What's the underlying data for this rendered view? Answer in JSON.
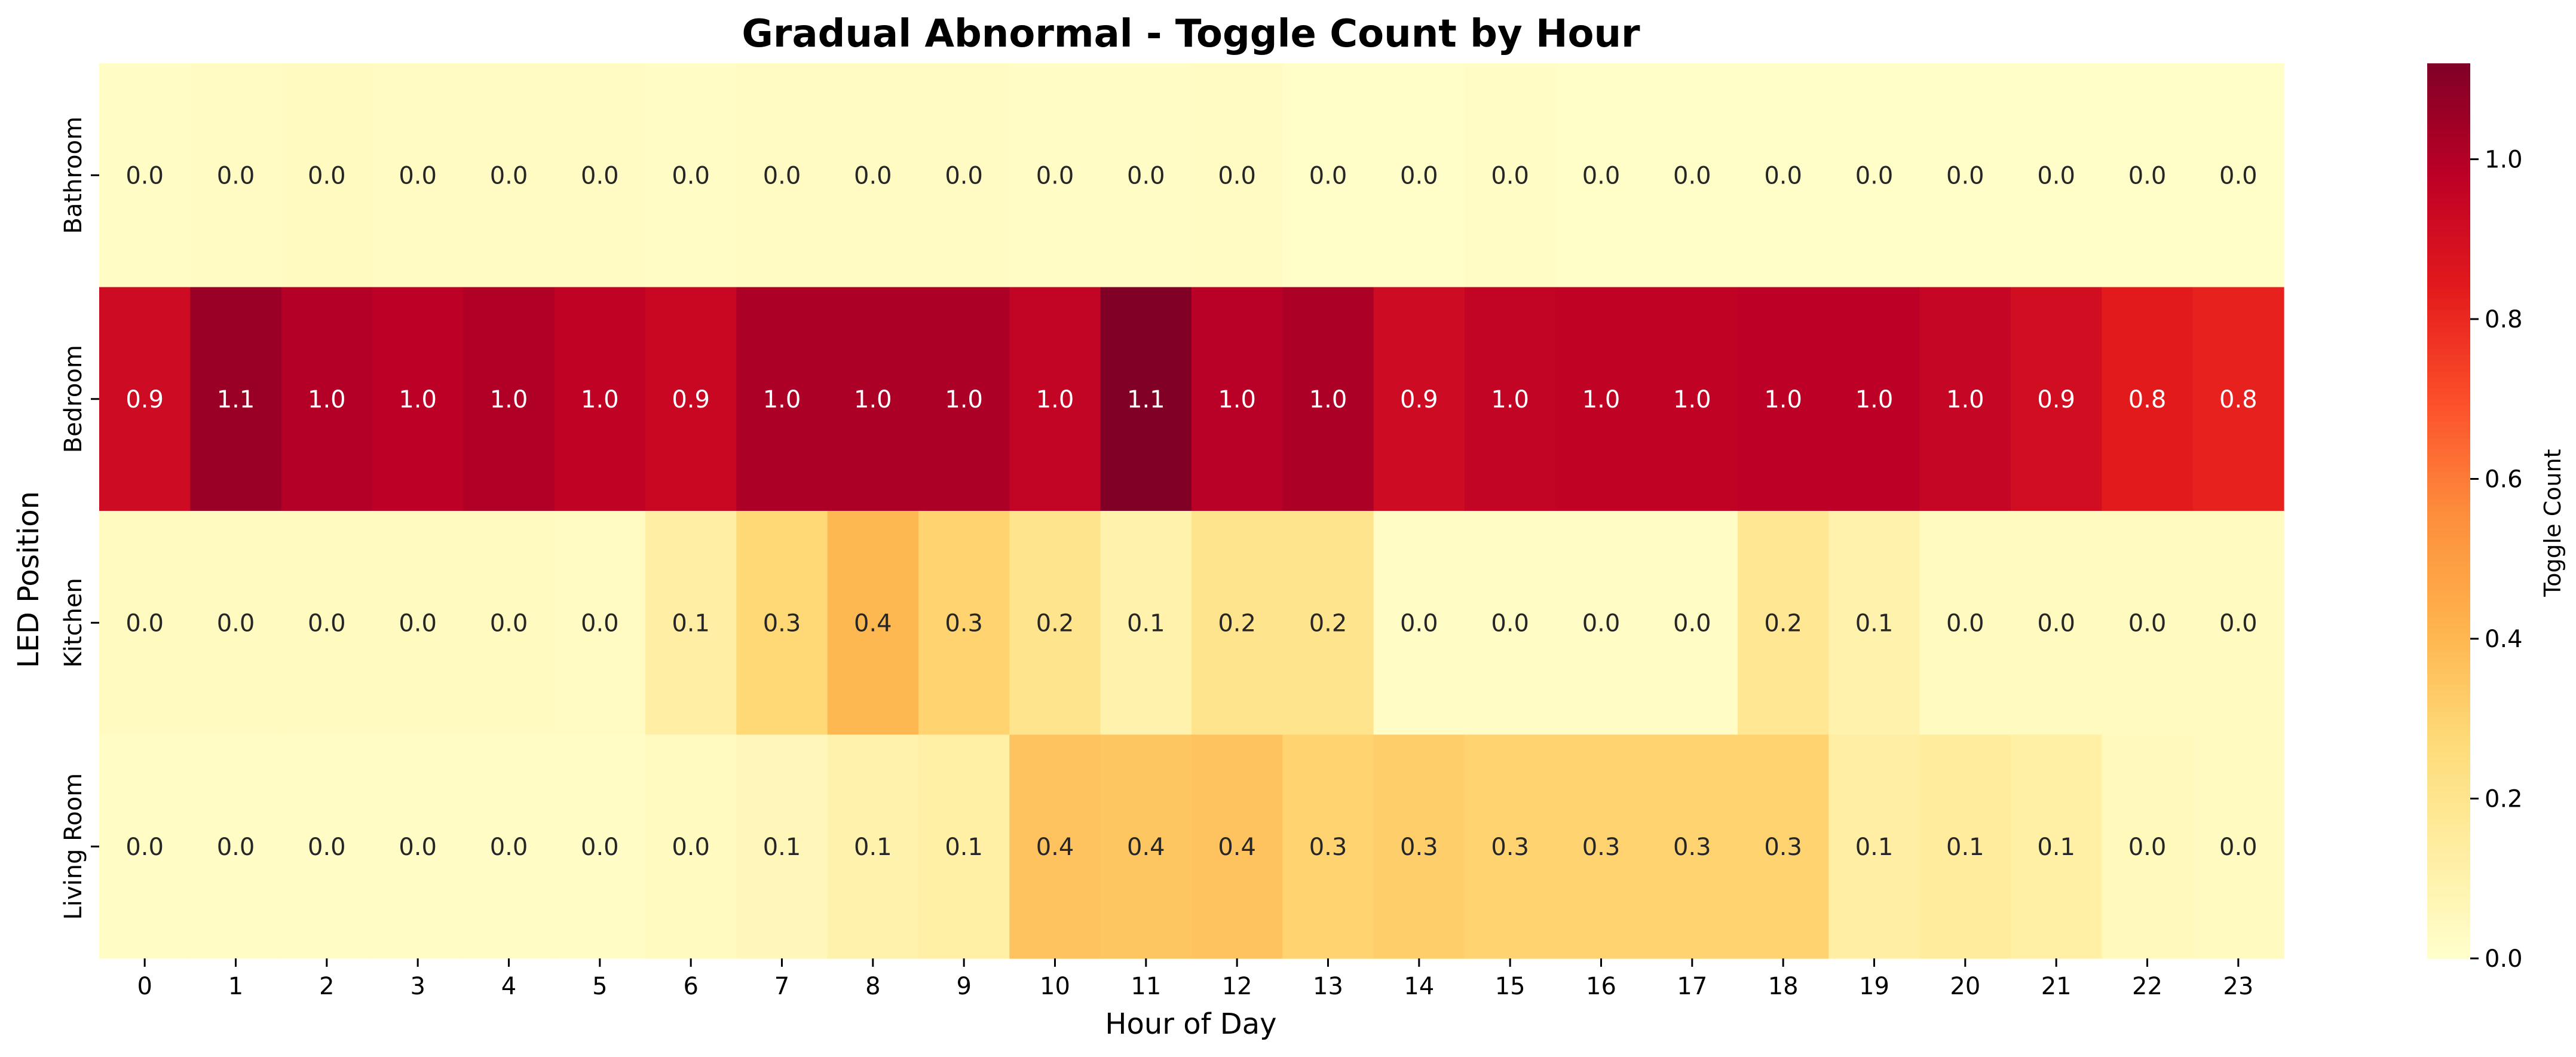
{
  "chart_data": {
    "type": "heatmap",
    "title": "Gradual Abnormal - Toggle Count by Hour",
    "xlabel": "Hour of Day",
    "ylabel": "LED Position",
    "x": [
      "0",
      "1",
      "2",
      "3",
      "4",
      "5",
      "6",
      "7",
      "8",
      "9",
      "10",
      "11",
      "12",
      "13",
      "14",
      "15",
      "16",
      "17",
      "18",
      "19",
      "20",
      "21",
      "22",
      "23"
    ],
    "y": [
      "Bathroom",
      "Bedroom",
      "Kitchen",
      "Living Room"
    ],
    "values": [
      [
        0.02,
        0.03,
        0.04,
        0.03,
        0.03,
        0.03,
        0.02,
        0.03,
        0.03,
        0.03,
        0.02,
        0.02,
        0.03,
        0.01,
        0.01,
        0.02,
        0.01,
        0.01,
        0.01,
        0.01,
        0.01,
        0.01,
        0.01,
        0.01
      ],
      [
        0.92,
        1.06,
        1.0,
        0.98,
        1.01,
        0.97,
        0.94,
        1.02,
        1.02,
        1.02,
        0.96,
        1.12,
        0.99,
        1.02,
        0.92,
        0.96,
        0.97,
        0.97,
        0.98,
        0.98,
        0.95,
        0.91,
        0.84,
        0.82
      ],
      [
        0.04,
        0.04,
        0.04,
        0.04,
        0.04,
        0.03,
        0.13,
        0.28,
        0.4,
        0.3,
        0.2,
        0.1,
        0.2,
        0.2,
        0.02,
        0.02,
        0.02,
        0.02,
        0.18,
        0.1,
        0.04,
        0.04,
        0.04,
        0.04
      ],
      [
        0.02,
        0.02,
        0.02,
        0.02,
        0.02,
        0.02,
        0.04,
        0.06,
        0.1,
        0.12,
        0.36,
        0.35,
        0.36,
        0.3,
        0.32,
        0.3,
        0.3,
        0.3,
        0.3,
        0.13,
        0.15,
        0.12,
        0.05,
        0.04
      ]
    ],
    "labels": [
      [
        "0.0",
        "0.0",
        "0.0",
        "0.0",
        "0.0",
        "0.0",
        "0.0",
        "0.0",
        "0.0",
        "0.0",
        "0.0",
        "0.0",
        "0.0",
        "0.0",
        "0.0",
        "0.0",
        "0.0",
        "0.0",
        "0.0",
        "0.0",
        "0.0",
        "0.0",
        "0.0",
        "0.0"
      ],
      [
        "0.9",
        "1.1",
        "1.0",
        "1.0",
        "1.0",
        "1.0",
        "0.9",
        "1.0",
        "1.0",
        "1.0",
        "1.0",
        "1.1",
        "1.0",
        "1.0",
        "0.9",
        "1.0",
        "1.0",
        "1.0",
        "1.0",
        "1.0",
        "1.0",
        "0.9",
        "0.8",
        "0.8"
      ],
      [
        "0.0",
        "0.0",
        "0.0",
        "0.0",
        "0.0",
        "0.0",
        "0.1",
        "0.3",
        "0.4",
        "0.3",
        "0.2",
        "0.1",
        "0.2",
        "0.2",
        "0.0",
        "0.0",
        "0.0",
        "0.0",
        "0.2",
        "0.1",
        "0.0",
        "0.0",
        "0.0",
        "0.0"
      ],
      [
        "0.0",
        "0.0",
        "0.0",
        "0.0",
        "0.0",
        "0.0",
        "0.0",
        "0.1",
        "0.1",
        "0.1",
        "0.4",
        "0.4",
        "0.4",
        "0.3",
        "0.3",
        "0.3",
        "0.3",
        "0.3",
        "0.3",
        "0.1",
        "0.1",
        "0.1",
        "0.0",
        "0.0"
      ]
    ],
    "colorbar": {
      "label": "Toggle Count",
      "range": [
        0,
        1.12
      ],
      "ticks": [
        "0.0",
        "0.2",
        "0.4",
        "0.6",
        "0.8",
        "1.0"
      ],
      "colormap": "YlOrRd"
    },
    "grid": false,
    "legend": "none"
  }
}
